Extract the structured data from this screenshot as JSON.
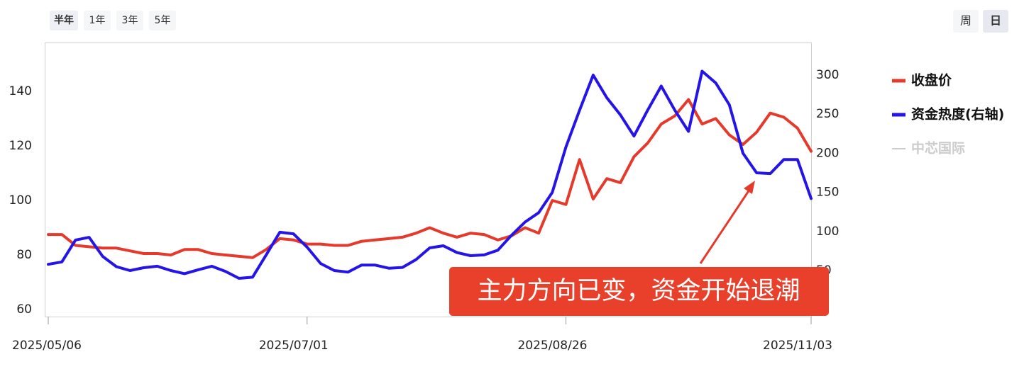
{
  "tabs_left": {
    "items": [
      "半年",
      "1年",
      "3年",
      "5年"
    ],
    "active": 0
  },
  "tabs_right": {
    "items": [
      "周",
      "日"
    ],
    "active": 1
  },
  "chart_data": {
    "type": "line",
    "categories": [
      "2025/05/06",
      null,
      null,
      null,
      null,
      null,
      null,
      null,
      null,
      null,
      null,
      null,
      null,
      null,
      null,
      null,
      null,
      null,
      null,
      "2025/07/01",
      null,
      null,
      null,
      null,
      null,
      null,
      null,
      null,
      null,
      null,
      null,
      null,
      null,
      null,
      null,
      null,
      null,
      null,
      "2025/08/26",
      null,
      null,
      null,
      null,
      null,
      null,
      null,
      null,
      null,
      null,
      null,
      null,
      null,
      null,
      null,
      null,
      null,
      "2025/11/03"
    ],
    "series": [
      {
        "name": "收盘价",
        "color": "#e53a2b",
        "axis": "y",
        "values": [
          87.5,
          87.5,
          83.5,
          83,
          82.5,
          82.5,
          81.5,
          80.5,
          80.5,
          80,
          82,
          82,
          80.5,
          80,
          79.5,
          79,
          82,
          86,
          85.5,
          84,
          84,
          83.5,
          83.5,
          85,
          85.5,
          86,
          86.5,
          88,
          90,
          88,
          86.5,
          88,
          87.5,
          85.5,
          87,
          90,
          88,
          100,
          98.5,
          115,
          100.5,
          108,
          106.5,
          116,
          121,
          128,
          131,
          137,
          128,
          130,
          124,
          120.5,
          125,
          132,
          130.5,
          126.5,
          118
        ]
      },
      {
        "name": "资金热度(右轴)",
        "color": "#2414e8",
        "axis": "y2",
        "values": [
          58,
          61,
          89,
          92.5,
          68,
          55,
          50,
          53.6,
          55.5,
          50,
          46,
          51,
          55.5,
          49,
          40,
          41.5,
          70,
          99,
          97,
          80,
          59,
          50,
          48,
          57,
          57,
          53,
          54,
          64,
          79,
          81.7,
          73,
          69,
          70,
          76,
          95,
          112,
          124,
          150,
          208,
          255,
          300,
          271,
          249,
          222,
          255,
          286,
          255,
          228,
          305,
          290,
          262,
          200,
          175,
          174,
          192,
          192,
          142
        ]
      },
      {
        "name": "中芯国际",
        "color": "#cccccc",
        "visible": false
      }
    ],
    "ylim": [
      57.4,
      157.9
    ],
    "yticks": [
      60,
      80,
      100,
      120,
      140
    ],
    "y2lim": [
      -8.9,
      341.7
    ],
    "y2ticks": [
      50,
      100,
      150,
      200,
      250,
      300
    ],
    "annotation": "主力方向已变，资金开始退潮"
  }
}
